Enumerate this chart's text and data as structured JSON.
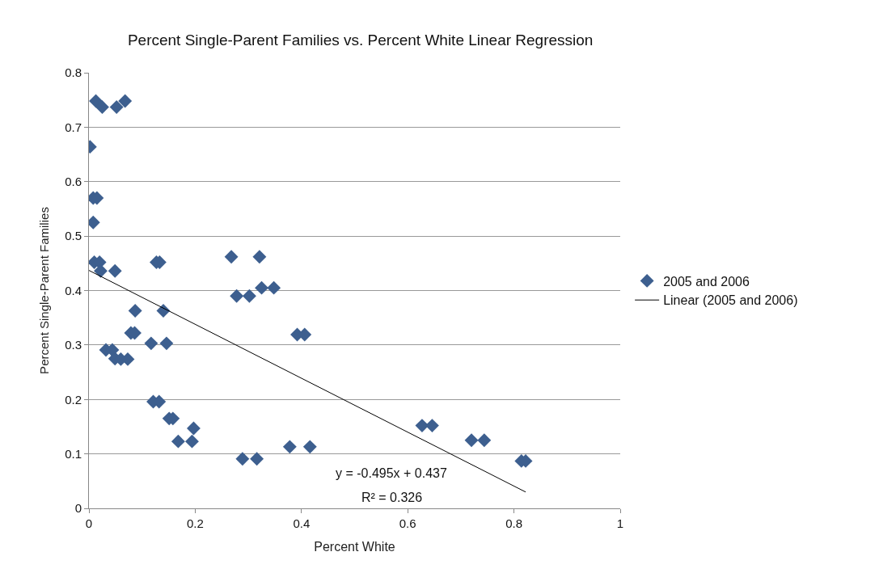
{
  "chart_data": {
    "type": "scatter",
    "title": "Percent Single-Parent Families vs. Percent White Linear Regression",
    "xlabel": "Percent White",
    "ylabel": "Percent Single-Parent Families",
    "xlim": [
      0,
      1
    ],
    "xticks": [
      0,
      0.2,
      0.4,
      0.6,
      0.8,
      1
    ],
    "ylim": [
      0,
      0.8
    ],
    "yticks": [
      0,
      0.1,
      0.2,
      0.3,
      0.4,
      0.5,
      0.6,
      0.7,
      0.8
    ],
    "grid": "y",
    "legend": "right",
    "marker": "diamond",
    "series": [
      {
        "name": "2005 and 2006",
        "color": "#3d5f8f",
        "x": [
          0.008,
          0.002,
          0.008,
          0.015,
          0.013,
          0.025,
          0.052,
          0.068,
          0.01,
          0.02,
          0.022,
          0.049,
          0.127,
          0.133,
          0.268,
          0.321,
          0.278,
          0.302,
          0.325,
          0.348,
          0.392,
          0.406,
          0.087,
          0.14,
          0.079,
          0.086,
          0.117,
          0.146,
          0.032,
          0.044,
          0.049,
          0.06,
          0.073,
          0.121,
          0.132,
          0.151,
          0.158,
          0.168,
          0.194,
          0.197,
          0.289,
          0.316,
          0.378,
          0.416,
          0.627,
          0.646,
          0.72,
          0.744,
          0.814,
          0.822
        ],
        "values": [
          0.525,
          0.664,
          0.57,
          0.57,
          0.748,
          0.737,
          0.737,
          0.748,
          0.452,
          0.452,
          0.436,
          0.436,
          0.452,
          0.452,
          0.462,
          0.462,
          0.39,
          0.39,
          0.405,
          0.405,
          0.319,
          0.319,
          0.363,
          0.363,
          0.322,
          0.322,
          0.303,
          0.303,
          0.291,
          0.291,
          0.275,
          0.274,
          0.274,
          0.196,
          0.196,
          0.165,
          0.165,
          0.123,
          0.123,
          0.147,
          0.091,
          0.091,
          0.113,
          0.113,
          0.152,
          0.152,
          0.125,
          0.125,
          0.087,
          0.087
        ]
      },
      {
        "name": "Linear (2005 and 2006)",
        "color": "#000000",
        "type": "line",
        "marker": "none",
        "x": [
          0,
          0.822
        ],
        "values": [
          0.437,
          0.03
        ]
      }
    ],
    "annotations": [
      "y = -0.495x + 0.437",
      "R² = 0.326"
    ]
  }
}
